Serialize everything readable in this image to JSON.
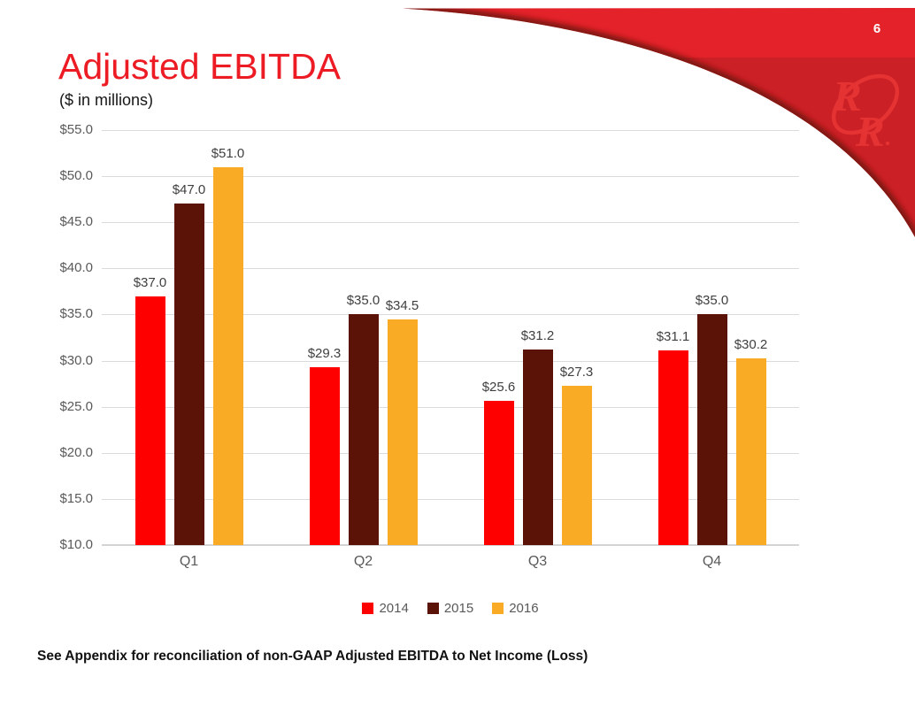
{
  "page": {
    "number": "6"
  },
  "slide": {
    "title": "Adjusted EBITDA",
    "subtitle": "($ in millions)",
    "footnote": "See Appendix for reconciliation of non-GAAP Adjusted EBITDA to Net Income (Loss)",
    "logo": "red-robin-rr-logo"
  },
  "colors": {
    "title_red": "#ec1b24",
    "swoosh_bright_red": "#e3222a",
    "swoosh_dark_red": "#cb2026",
    "swoosh_shadow": "#6e1510",
    "logo_red": "#e73434",
    "gridline": "#dbdbdb",
    "axis_text": "#595959",
    "data_label_text": "#3f3f3f"
  },
  "chart_data": {
    "type": "bar",
    "title": "Adjusted EBITDA",
    "subtitle": "($ in millions)",
    "categories": [
      "Q1",
      "Q2",
      "Q3",
      "Q4"
    ],
    "series": [
      {
        "name": "2014",
        "color": "#ff0000",
        "values": [
          37.0,
          29.3,
          25.6,
          31.1
        ]
      },
      {
        "name": "2015",
        "color": "#5b1308",
        "values": [
          47.0,
          35.0,
          31.2,
          35.0
        ]
      },
      {
        "name": "2016",
        "color": "#faab25",
        "values": [
          51.0,
          34.5,
          27.3,
          30.2
        ]
      }
    ],
    "value_prefix": "$",
    "value_decimals": 1,
    "ylim": [
      10,
      55
    ],
    "yticks": [
      {
        "value": 55,
        "label": "$55.0"
      },
      {
        "value": 50,
        "label": "$50.0"
      },
      {
        "value": 45,
        "label": "$45.0"
      },
      {
        "value": 40,
        "label": "$40.0"
      },
      {
        "value": 35,
        "label": "$35.0"
      },
      {
        "value": 30,
        "label": "$30.0"
      },
      {
        "value": 25,
        "label": "$25.0"
      },
      {
        "value": 20,
        "label": "$20.0"
      },
      {
        "value": 15,
        "label": "$15.0"
      },
      {
        "value": 10,
        "label": "$10.0"
      }
    ],
    "grid": true,
    "data_labels": true,
    "legend_position": "bottom"
  }
}
